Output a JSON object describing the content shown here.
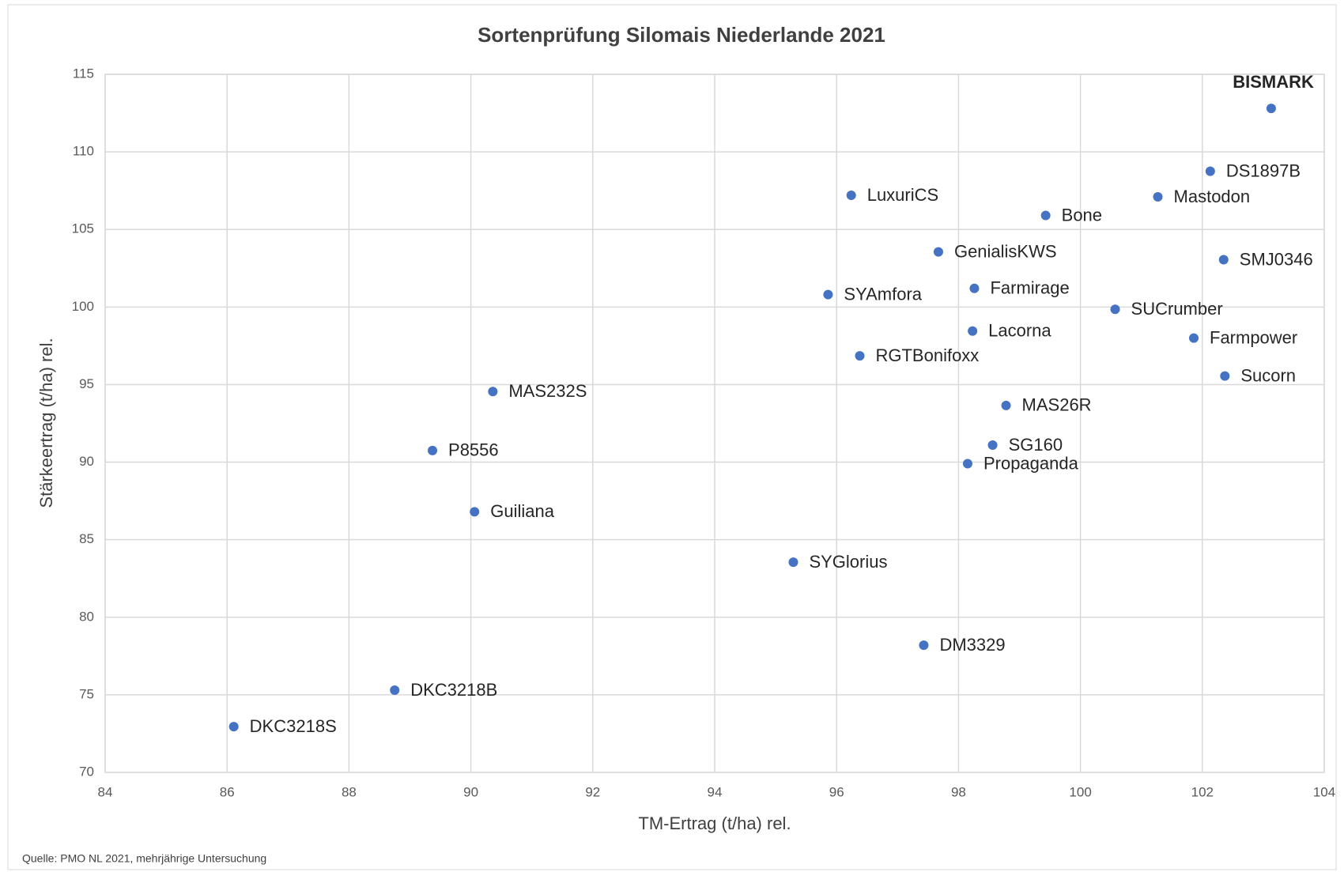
{
  "chart_data": {
    "type": "scatter",
    "title": "Sortenprüfung Silomais Niederlande 2021",
    "x_label": "TM-Ertrag (t/ha) rel.",
    "y_label": "Stärkeertrag (t/ha) rel.",
    "source": "Quelle: PMO NL 2021, mehrjährige Untersuchung",
    "color": "#4472c4",
    "grid": true,
    "highlight_index": 0,
    "labels": [
      "BISMARK",
      "DS1897B",
      "Mastodon",
      "LuxuriCS",
      "Bone",
      "GenialisKWS",
      "SMJ0346",
      "Farmirage",
      "SYAmfora",
      "SUCrumber",
      "Lacorna",
      "Farmpower",
      "RGTBonifoxx",
      "Sucorn",
      "MAS232S",
      "MAS26R",
      "SG160",
      "P8556",
      "Propaganda",
      "Guiliana",
      "SYGlorius",
      "DM3329",
      "DKC3218B",
      "DKC3218S"
    ],
    "x": [
      103.13,
      102.13,
      101.27,
      96.24,
      99.43,
      97.67,
      102.35,
      98.26,
      95.86,
      100.57,
      98.23,
      101.86,
      96.38,
      102.37,
      90.36,
      98.78,
      98.56,
      89.37,
      98.15,
      90.06,
      95.29,
      97.43,
      88.75,
      86.11
    ],
    "values": [
      112.8,
      108.75,
      107.1,
      107.2,
      105.9,
      103.55,
      103.05,
      101.2,
      100.8,
      99.85,
      98.45,
      98.0,
      96.85,
      95.55,
      94.55,
      93.65,
      91.1,
      90.75,
      89.9,
      86.8,
      83.55,
      78.2,
      75.3,
      72.95
    ],
    "xlim": [
      84,
      104
    ],
    "xticks": [
      84,
      86,
      88,
      90,
      92,
      94,
      96,
      98,
      100,
      102,
      104
    ],
    "ylim": [
      70,
      115
    ],
    "yticks": [
      70,
      75,
      80,
      85,
      90,
      95,
      100,
      105,
      110,
      115
    ]
  }
}
